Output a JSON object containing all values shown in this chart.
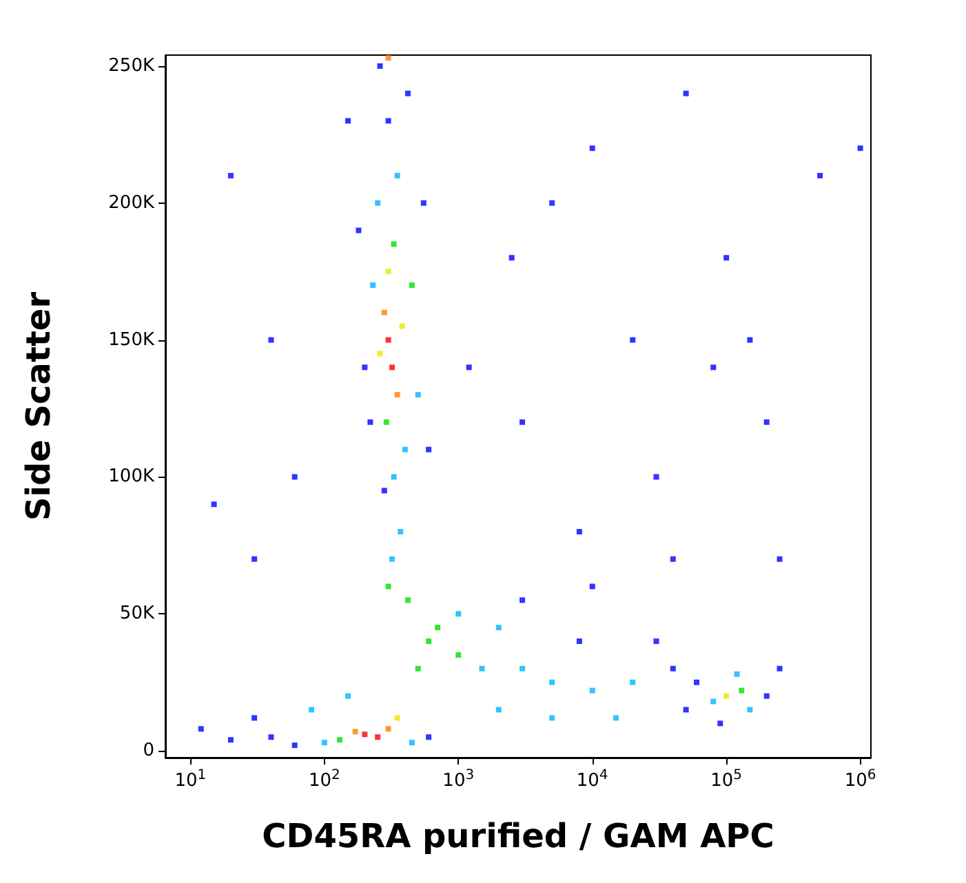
{
  "chart_data": {
    "type": "scatter",
    "xlabel": "CD45RA purified / GAM APC",
    "ylabel": "Side Scatter",
    "log": "x",
    "grid": false,
    "marker": "square",
    "xlim": [
      6.5,
      1200000
    ],
    "xticks": [
      {
        "value": 10,
        "label": "10$^{1}$"
      },
      {
        "value": 100,
        "label": "10$^{2}$"
      },
      {
        "value": 1000,
        "label": "10$^{3}$"
      },
      {
        "value": 10000,
        "label": "10$^{4}$"
      },
      {
        "value": 100000,
        "label": "10$^{5}$"
      },
      {
        "value": 1000000,
        "label": "10$^{6}$"
      }
    ],
    "ylim": [
      -2500,
      254000
    ],
    "yticks": [
      0,
      {
        "value": 50000,
        "label": "50K"
      },
      {
        "value": 100000,
        "label": "100K"
      },
      {
        "value": 150000,
        "label": "150K"
      },
      {
        "value": 200000,
        "label": "200K"
      },
      {
        "value": 250000,
        "label": "250K"
      }
    ],
    "series": [
      {
        "x": [
          300,
          320,
          280,
          350,
          300,
          330,
          260,
          380,
          290,
          400,
          250,
          350,
          300,
          420,
          230,
          450,
          200,
          500,
          330,
          280,
          550,
          180,
          260,
          300,
          150,
          600,
          220,
          370,
          320,
          300,
          420,
          200,
          250,
          170,
          300,
          130,
          350,
          100,
          60,
          40,
          450,
          20,
          30,
          80,
          150,
          600,
          12,
          600,
          1000,
          1500,
          3000,
          5000,
          2000,
          10000,
          20000,
          8000,
          30000,
          1000,
          700,
          500,
          2000,
          5000,
          15000,
          50000,
          3000,
          10000,
          40000,
          100000,
          130000,
          80000,
          150000,
          120000,
          200000,
          60000,
          250000,
          90000,
          5000,
          20000,
          100000,
          80000,
          150000,
          3000,
          30000,
          200000,
          10000,
          50000,
          500000,
          30,
          15,
          40,
          20,
          60,
          1200,
          2500,
          8000,
          250000,
          1000000,
          40000
        ],
        "values": [
          150000,
          140000,
          160000,
          130000,
          175000,
          185000,
          145000,
          155000,
          120000,
          110000,
          200000,
          210000,
          230000,
          240000,
          170000,
          170000,
          140000,
          130000,
          100000,
          95000,
          200000,
          190000,
          250000,
          253000,
          230000,
          110000,
          120000,
          80000,
          70000,
          60000,
          55000,
          6000,
          5000,
          7000,
          8000,
          4000,
          12000,
          3000,
          2000,
          5000,
          3000,
          4000,
          12000,
          15000,
          20000,
          5000,
          8000,
          40000,
          35000,
          30000,
          30000,
          25000,
          45000,
          22000,
          25000,
          40000,
          40000,
          50000,
          45000,
          30000,
          15000,
          12000,
          12000,
          15000,
          55000,
          60000,
          30000,
          20000,
          22000,
          18000,
          15000,
          28000,
          20000,
          25000,
          30000,
          10000,
          200000,
          150000,
          180000,
          140000,
          150000,
          120000,
          100000,
          120000,
          220000,
          240000,
          210000,
          70000,
          90000,
          150000,
          210000,
          100000,
          140000,
          180000,
          80000,
          70000,
          220000,
          70000
        ],
        "colors": [
          "#ff0000",
          "#ff0000",
          "#ff8000",
          "#ff8000",
          "#e8e800",
          "#00e000",
          "#e8e800",
          "#e8e800",
          "#00e000",
          "#00b4ff",
          "#00b4ff",
          "#00b4ff",
          "#0000ff",
          "#0000ff",
          "#00b4ff",
          "#00e000",
          "#0000ff",
          "#00b4ff",
          "#00b4ff",
          "#0000ff",
          "#0000ff",
          "#0000ff",
          "#0000ff",
          "#ff8000",
          "#0000ff",
          "#0000ff",
          "#0000ff",
          "#00b4ff",
          "#00b4ff",
          "#00e000",
          "#00e000",
          "#ff0000",
          "#ff0000",
          "#ff8000",
          "#ff8000",
          "#00e000",
          "#e8e800",
          "#00b4ff",
          "#0000ff",
          "#0000ff",
          "#00b4ff",
          "#0000ff",
          "#0000ff",
          "#00b4ff",
          "#00b4ff",
          "#0000ff",
          "#0000ff",
          "#00e000",
          "#00e000",
          "#00b4ff",
          "#00b4ff",
          "#00b4ff",
          "#00b4ff",
          "#00b4ff",
          "#00b4ff",
          "#0000ff",
          "#0000ff",
          "#00b4ff",
          "#00e000",
          "#00e000",
          "#00b4ff",
          "#00b4ff",
          "#00b4ff",
          "#0000ff",
          "#0000ff",
          "#0000ff",
          "#0000ff",
          "#e8e800",
          "#00e000",
          "#00b4ff",
          "#00b4ff",
          "#00b4ff",
          "#0000ff",
          "#0000ff",
          "#0000ff",
          "#0000ff",
          "#0000ff",
          "#0000ff",
          "#0000ff",
          "#0000ff",
          "#0000ff",
          "#0000ff",
          "#0000ff",
          "#0000ff",
          "#0000ff",
          "#0000ff",
          "#0000ff",
          "#0000ff",
          "#0000ff",
          "#0000ff",
          "#0000ff",
          "#0000ff",
          "#0000ff",
          "#0000ff",
          "#0000ff",
          "#0000ff",
          "#0000ff",
          "#0000ff"
        ]
      }
    ]
  }
}
